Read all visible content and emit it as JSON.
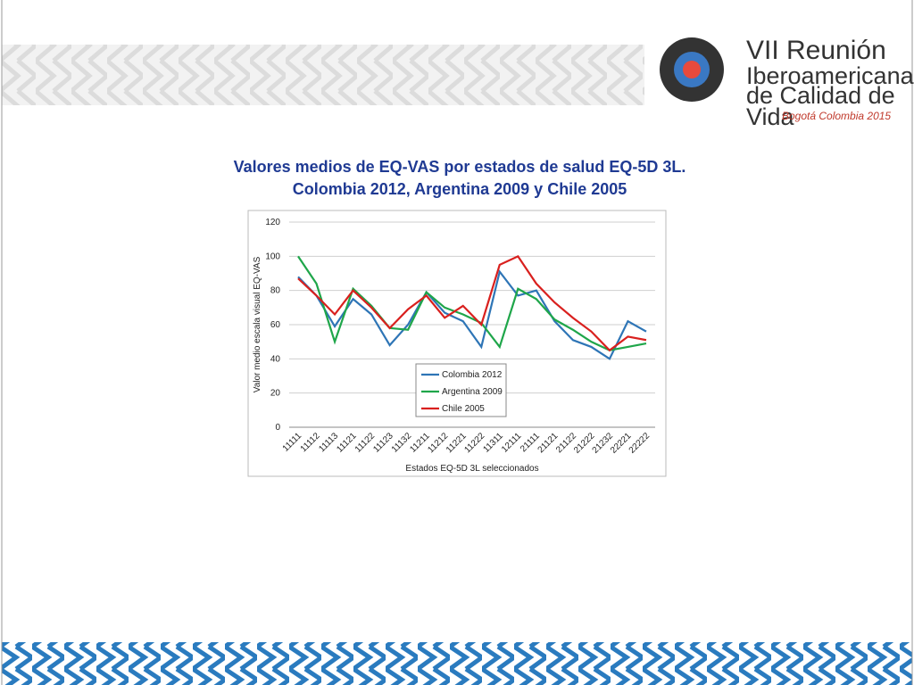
{
  "header": {
    "logo_line1": "VII Reunión",
    "logo_line2": "Iberoamericana",
    "logo_line3": "de Calidad de Vida",
    "logo_tagline": "Bogotá Colombia 2015"
  },
  "chart_data": {
    "type": "line",
    "title": "Valores medios de EQ-VAS por estados de salud EQ-5D 3L. Colombia 2012, Argentina 2009 y Chile 2005",
    "x_label": "Estados EQ-5D 3L seleccionados",
    "y_label": "Valor medio escala visual EQ-VAS",
    "categories": [
      "11111",
      "11112",
      "11113",
      "11121",
      "11122",
      "11123",
      "11132",
      "11211",
      "11212",
      "11221",
      "11222",
      "11311",
      "12111",
      "21111",
      "21121",
      "21122",
      "21222",
      "21232",
      "22221",
      "22222"
    ],
    "series": [
      {
        "name": "Colombia 2012",
        "color": "#2e75b6",
        "values": [
          88,
          77,
          59,
          75,
          66,
          48,
          60,
          79,
          67,
          62,
          47,
          91,
          77,
          80,
          62,
          51,
          47,
          40,
          62,
          56
        ]
      },
      {
        "name": "Argentina 2009",
        "color": "#1fa64a",
        "values": [
          100,
          84,
          50,
          81,
          71,
          58,
          57,
          79,
          70,
          66,
          61,
          47,
          81,
          75,
          63,
          57,
          50,
          45,
          47,
          49
        ]
      },
      {
        "name": "Chile 2005",
        "color": "#d9201e",
        "values": [
          87,
          77,
          66,
          80,
          70,
          58,
          69,
          77,
          64,
          71,
          60,
          95,
          100,
          84,
          73,
          64,
          56,
          45,
          53,
          51
        ]
      }
    ],
    "ylim": [
      0,
      120
    ],
    "yticks": [
      0,
      20,
      40,
      60,
      80,
      100,
      120
    ],
    "grid": true,
    "legend": "bottom-center"
  }
}
